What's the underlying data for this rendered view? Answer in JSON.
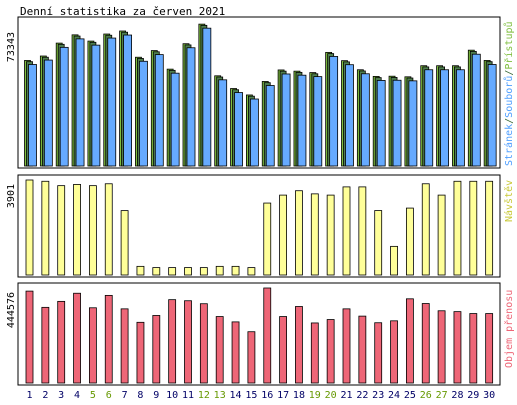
{
  "title": "Denní statistika za červen 2021",
  "colors": {
    "background": "#ffffff",
    "border": "#000000",
    "weekday_label": "#000066",
    "weekend_label": "#669900",
    "hits": "#7fbf3f",
    "files": "#4f7f4f",
    "pages": "#66aaff",
    "visits": "#ffff99",
    "kbytes": "#ee6677",
    "ylabel_visits": "#c9c937",
    "ylabel_pages": "#4f9fff",
    "ylabel_files": "#336633",
    "ylabel_hits": "#7fbf3f",
    "ylabel_kbytes": "#ee6677"
  },
  "chart_data": [
    {
      "type": "bar",
      "name": "traffic",
      "categories": [
        "1",
        "2",
        "3",
        "4",
        "5",
        "6",
        "7",
        "8",
        "9",
        "10",
        "11",
        "12",
        "13",
        "14",
        "15",
        "16",
        "17",
        "18",
        "19",
        "20",
        "21",
        "22",
        "23",
        "24",
        "25",
        "26",
        "27",
        "28",
        "29",
        "30"
      ],
      "weekend": [
        false,
        false,
        false,
        false,
        true,
        true,
        false,
        false,
        false,
        false,
        false,
        true,
        true,
        false,
        false,
        false,
        false,
        false,
        true,
        true,
        false,
        false,
        false,
        false,
        false,
        true,
        true,
        false,
        false,
        false
      ],
      "max_label": "73343",
      "ylim": [
        0,
        73343
      ],
      "ylabel_parts": [
        {
          "text": "Stránek",
          "color_key": "ylabel_pages"
        },
        {
          "text": "/",
          "color_key": "ylabel_files"
        },
        {
          "text": "Souborů",
          "color_key": "ylabel_pages"
        },
        {
          "text": "/",
          "color_key": "ylabel_files"
        },
        {
          "text": "Přístupů",
          "color_key": "ylabel_hits"
        }
      ],
      "series": [
        {
          "name": "Přístupů",
          "color_key": "hits",
          "values": [
            52300,
            54500,
            60900,
            65000,
            61900,
            65400,
            66900,
            53900,
            57200,
            48000,
            60600,
            70300,
            44700,
            38400,
            35200,
            41900,
            47600,
            47000,
            46300,
            56300,
            52200,
            47700,
            44400,
            44500,
            44200,
            49700,
            49700,
            49700,
            57400,
            52300
          ]
        },
        {
          "name": "Souborů",
          "color_key": "files",
          "values": [
            51700,
            53900,
            60300,
            64400,
            61300,
            64800,
            66300,
            53300,
            56600,
            47400,
            60000,
            69700,
            44100,
            37800,
            34600,
            41300,
            47000,
            46400,
            45700,
            55700,
            51600,
            47100,
            43800,
            43900,
            43600,
            49100,
            49100,
            49100,
            56800,
            51700
          ]
        },
        {
          "name": "Stránek",
          "color_key": "pages",
          "values": [
            50300,
            52500,
            58800,
            63000,
            59900,
            63400,
            64900,
            51900,
            55200,
            46000,
            58600,
            68300,
            42700,
            36400,
            33200,
            39900,
            45600,
            45000,
            44300,
            54300,
            50200,
            45700,
            42400,
            42500,
            42200,
            47700,
            47700,
            47700,
            55400,
            50300
          ]
        }
      ]
    },
    {
      "type": "bar",
      "name": "visits",
      "categories": [
        "1",
        "2",
        "3",
        "4",
        "5",
        "6",
        "7",
        "8",
        "9",
        "10",
        "11",
        "12",
        "13",
        "14",
        "15",
        "16",
        "17",
        "18",
        "19",
        "20",
        "21",
        "22",
        "23",
        "24",
        "25",
        "26",
        "27",
        "28",
        "29",
        "30"
      ],
      "max_label": "3901",
      "ylim": [
        0,
        3901
      ],
      "ylabel": "Návštěv",
      "series": [
        {
          "name": "Návštěv",
          "color_key": "visits",
          "values": [
            3901,
            3849,
            3669,
            3720,
            3669,
            3746,
            2644,
            355,
            304,
            304,
            304,
            304,
            355,
            355,
            304,
            2954,
            3281,
            3461,
            3332,
            3281,
            3618,
            3618,
            2646,
            1176,
            2748,
            3746,
            3281,
            3849,
            3849,
            3849
          ]
        }
      ]
    },
    {
      "type": "bar",
      "name": "kbytes",
      "categories": [
        "1",
        "2",
        "3",
        "4",
        "5",
        "6",
        "7",
        "8",
        "9",
        "10",
        "11",
        "12",
        "13",
        "14",
        "15",
        "16",
        "17",
        "18",
        "19",
        "20",
        "21",
        "22",
        "23",
        "24",
        "25",
        "26",
        "27",
        "28",
        "29",
        "30"
      ],
      "max_label": "444576",
      "ylim": [
        0,
        444576
      ],
      "ylabel": "Objem přenosu",
      "series": [
        {
          "name": "Objem přenosu",
          "color_key": "kbytes",
          "values": [
            430000,
            354000,
            382000,
            420000,
            352000,
            410000,
            347000,
            284000,
            316000,
            390000,
            385000,
            371000,
            311000,
            286000,
            240000,
            444576,
            311000,
            358000,
            281000,
            297000,
            347000,
            313000,
            282000,
            291000,
            394000,
            372000,
            338000,
            334000,
            325000,
            325000
          ]
        }
      ]
    }
  ]
}
